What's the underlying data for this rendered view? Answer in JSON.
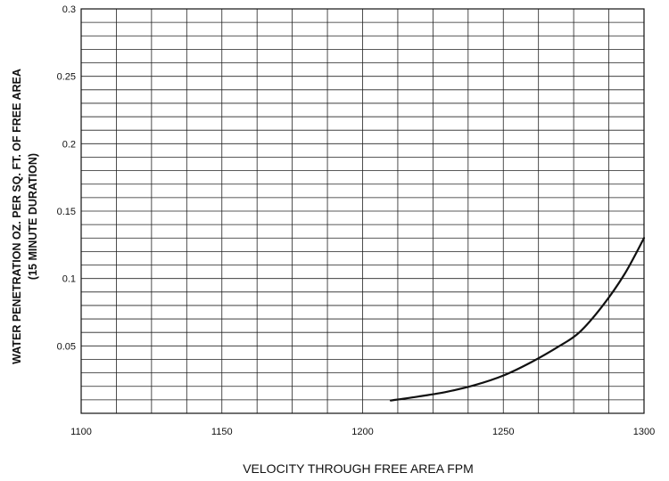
{
  "chart_data": {
    "type": "line",
    "title": "",
    "xlabel": "VELOCITY THROUGH FREE AREA FPM",
    "ylabel": [
      "WATER PENETRATION OZ. PER SQ. FT. OF FREE AREA",
      "(15 MINUTE DURATION)"
    ],
    "xlim": [
      1100,
      1300
    ],
    "ylim": [
      0,
      0.3
    ],
    "x_ticks": [
      "1100",
      "1150",
      "1200",
      "1250",
      "1300"
    ],
    "y_ticks": [
      "0.05",
      "0.1",
      "0.15",
      "0.2",
      "0.25",
      "0.3"
    ],
    "grid": true,
    "x_minor_step": 12.5,
    "y_minor_step": 0.01,
    "series": [
      {
        "name": "",
        "color": "#111111",
        "x": [
          1210,
          1220,
          1230,
          1240,
          1250,
          1260,
          1270,
          1277,
          1285,
          1293,
          1300
        ],
        "y": [
          0.0095,
          0.0125,
          0.016,
          0.021,
          0.028,
          0.038,
          0.05,
          0.06,
          0.079,
          0.103,
          0.13
        ]
      }
    ]
  }
}
